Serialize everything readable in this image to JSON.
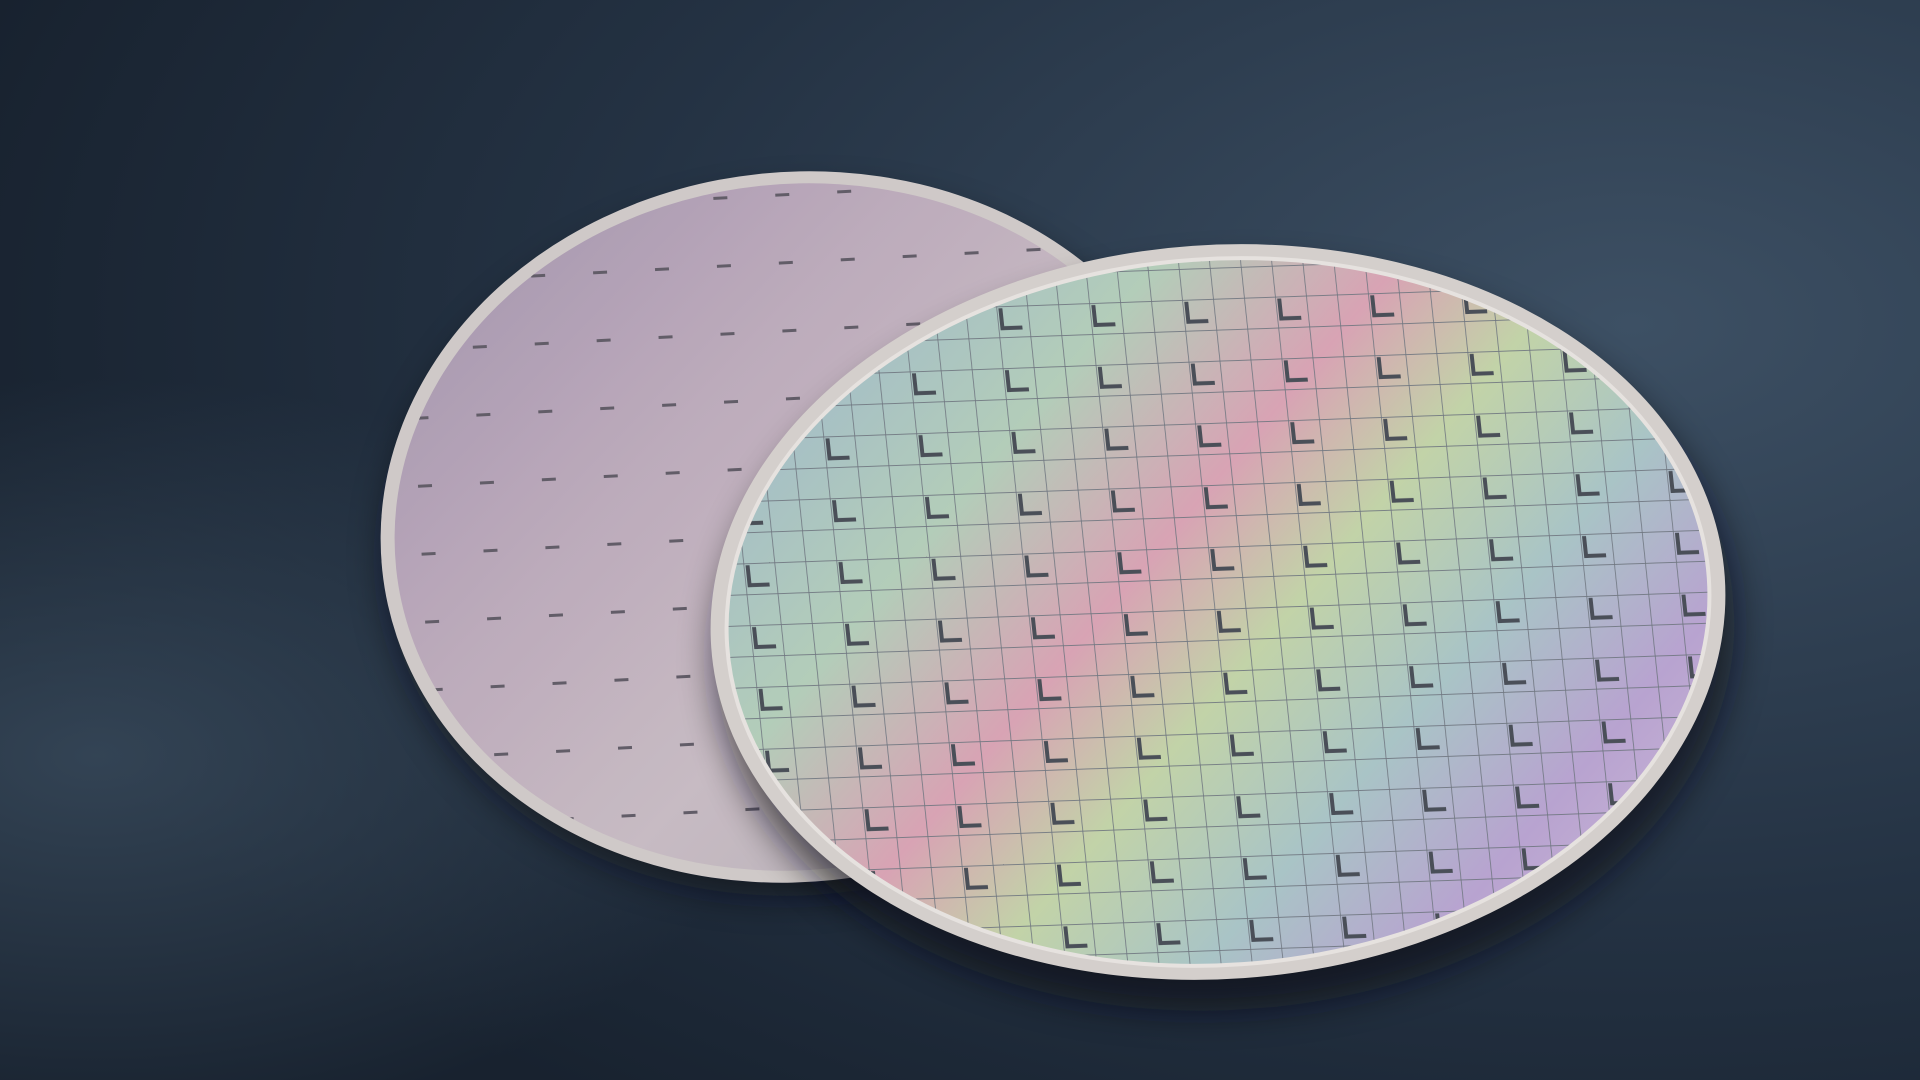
{
  "colors": {
    "background_dark": "#18222f",
    "background_light": "#3d5064",
    "wafer_rim": "#cfc9c8",
    "back_wafer_tint": "#a89aae",
    "front_wafer_blue": "#9fb8cc",
    "front_wafer_green": "#b9d2a8",
    "front_wafer_pink": "#d8a3b4",
    "front_wafer_purple": "#b8a3d0",
    "grid_line": "#6f7680"
  }
}
